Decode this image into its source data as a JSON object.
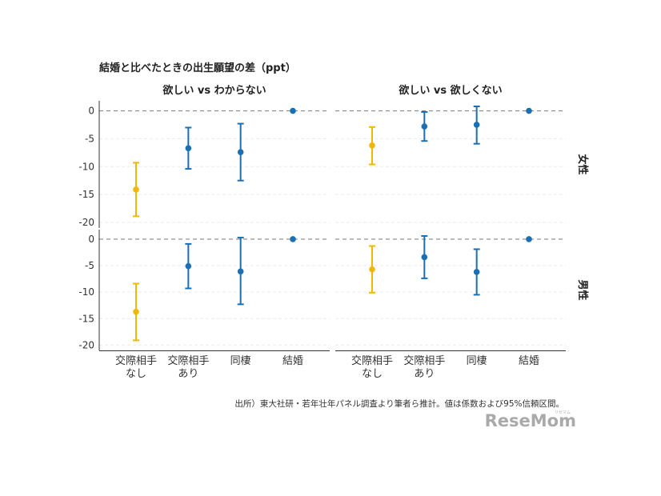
{
  "chart_data": {
    "type": "scatter",
    "title": "結婚と比べたときの出生願望の差（ppt）",
    "categories": [
      "交際相手\nなし",
      "交際相手\nあり",
      "同棲",
      "結婚"
    ],
    "ylim": [
      -21,
      1.8
    ],
    "yticks": [
      0,
      -5,
      -10,
      -15,
      -20
    ],
    "columns": [
      "欲しい vs わからない",
      "欲しい vs 欲しくない"
    ],
    "rows": [
      "女性",
      "男性"
    ],
    "reference_line": 0,
    "colors": {
      "highlight": "#f2b705",
      "default": "#1a6fb5",
      "reference": "#888888",
      "grid": "#ebebeb",
      "axis": "#333333"
    },
    "panels": [
      {
        "row": "女性",
        "column": "欲しい vs わからない",
        "points": [
          {
            "category": "交際相手\nなし",
            "est": -14.1,
            "lo": -18.9,
            "hi": -9.3,
            "highlight": true
          },
          {
            "category": "交際相手\nあり",
            "est": -6.7,
            "lo": -10.4,
            "hi": -3.0,
            "highlight": false
          },
          {
            "category": "同棲",
            "est": -7.4,
            "lo": -12.5,
            "hi": -2.3,
            "highlight": false
          },
          {
            "category": "結婚",
            "est": 0,
            "lo": 0,
            "hi": 0,
            "highlight": false
          }
        ]
      },
      {
        "row": "女性",
        "column": "欲しい vs 欲しくない",
        "points": [
          {
            "category": "交際相手\nなし",
            "est": -6.2,
            "lo": -9.6,
            "hi": -2.9,
            "highlight": true
          },
          {
            "category": "交際相手\nあり",
            "est": -2.8,
            "lo": -5.4,
            "hi": -0.2,
            "highlight": false
          },
          {
            "category": "同棲",
            "est": -2.5,
            "lo": -5.9,
            "hi": 0.8,
            "highlight": false
          },
          {
            "category": "結婚",
            "est": 0,
            "lo": 0,
            "hi": 0,
            "highlight": false
          }
        ]
      },
      {
        "row": "男性",
        "column": "欲しい vs わからない",
        "points": [
          {
            "category": "交際相手\nなし",
            "est": -13.7,
            "lo": -19.1,
            "hi": -8.4,
            "highlight": true
          },
          {
            "category": "交際相手\nあり",
            "est": -5.1,
            "lo": -9.3,
            "hi": -0.9,
            "highlight": false
          },
          {
            "category": "同棲",
            "est": -6.1,
            "lo": -12.3,
            "hi": 0.3,
            "highlight": false
          },
          {
            "category": "結婚",
            "est": 0,
            "lo": 0,
            "hi": 0,
            "highlight": false
          }
        ]
      },
      {
        "row": "男性",
        "column": "欲しい vs 欲しくない",
        "points": [
          {
            "category": "交際相手\nなし",
            "est": -5.7,
            "lo": -10.1,
            "hi": -1.3,
            "highlight": true
          },
          {
            "category": "交際相手\nあり",
            "est": -3.4,
            "lo": -7.4,
            "hi": 0.6,
            "highlight": false
          },
          {
            "category": "同棲",
            "est": -6.2,
            "lo": -10.5,
            "hi": -1.9,
            "highlight": false
          },
          {
            "category": "結婚",
            "est": 0,
            "lo": 0,
            "hi": 0,
            "highlight": false
          }
        ]
      }
    ]
  },
  "source_note": "出所）東大社研・若年壮年パネル調査より筆者ら推計。値は係数および95%信頼区間。",
  "logo": {
    "text": "ReseMom",
    "sub": "リセマム"
  }
}
